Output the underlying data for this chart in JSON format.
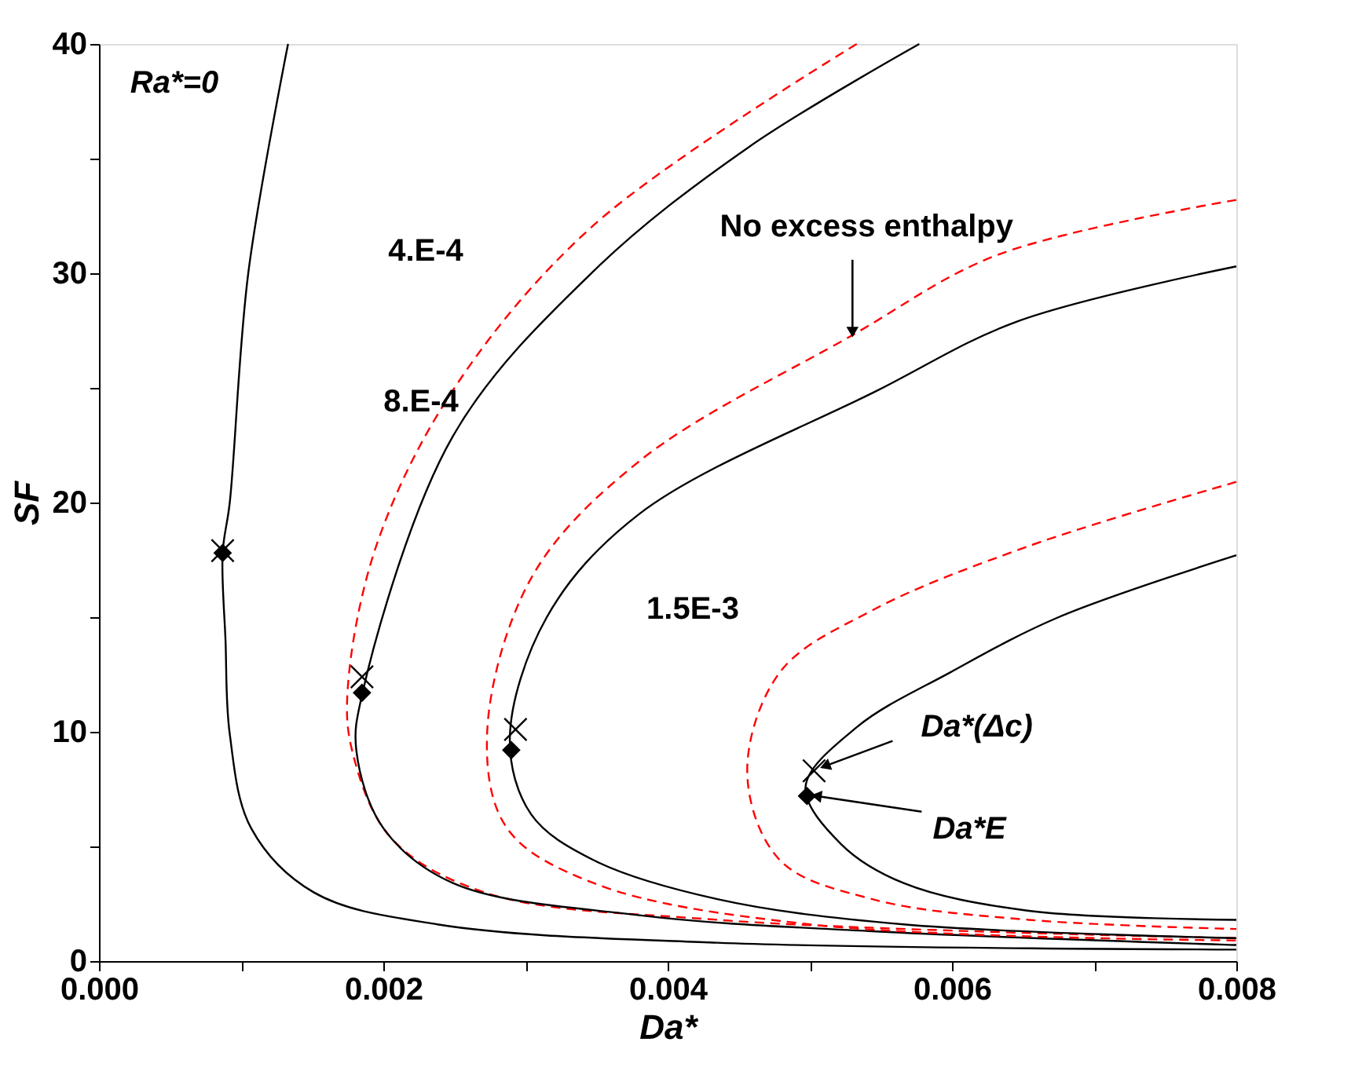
{
  "chart_data": {
    "type": "line",
    "xlabel": "Da*",
    "ylabel": "SF",
    "xlim": [
      0,
      0.008
    ],
    "ylim": [
      0,
      40
    ],
    "xticks": [
      {
        "value": 0,
        "label": "0.000"
      },
      {
        "value": 0.001,
        "label": null
      },
      {
        "value": 0.002,
        "label": "0.002"
      },
      {
        "value": 0.003,
        "label": null
      },
      {
        "value": 0.004,
        "label": "0.004"
      },
      {
        "value": 0.005,
        "label": null
      },
      {
        "value": 0.006,
        "label": "0.006"
      },
      {
        "value": 0.007,
        "label": null
      },
      {
        "value": 0.008,
        "label": "0.008"
      }
    ],
    "yticks": [
      0,
      {
        "value": 5,
        "label": null
      },
      10,
      {
        "value": 15,
        "label": null
      },
      20,
      {
        "value": 25,
        "label": null
      },
      30,
      {
        "value": 35,
        "label": null
      },
      40
    ],
    "grid": false,
    "series": [
      {
        "color": "#000000",
        "line_style": "solid",
        "x": [
          0.00133,
          0.00105,
          0.00092,
          0.00087,
          0.00089,
          0.00092,
          0.00107,
          0.00151,
          0.00238,
          0.00435,
          0.008
        ],
        "values": [
          40,
          30,
          20,
          17.8,
          14,
          9.9,
          5.8,
          3.0,
          1.6,
          0.8,
          0.5
        ]
      },
      {
        "color": "#ff0000",
        "line_style": "dashed",
        "x": [
          0.00533,
          0.00348,
          0.00249,
          0.00195,
          0.00175,
          0.00178,
          0.00205,
          0.00271,
          0.00435,
          0.008
        ],
        "values": [
          40,
          32.1,
          24.9,
          18.1,
          11.9,
          9.2,
          5.4,
          3.0,
          1.8,
          1.0
        ]
      },
      {
        "color": "#000000",
        "line_style": "solid",
        "x": [
          0.00577,
          0.00457,
          0.00348,
          0.00249,
          0.00185,
          0.00181,
          0.002,
          0.00249,
          0.0038,
          0.00544,
          0.008
        ],
        "values": [
          40,
          35.5,
          30.1,
          22.9,
          11.6,
          9.2,
          5.8,
          3.4,
          2.0,
          1.3,
          0.7
        ]
      },
      {
        "color": "#ff0000",
        "line_style": "dashed",
        "x": [
          0.008,
          0.00632,
          0.0053,
          0.0038,
          0.00304,
          0.00273,
          0.00287,
          0.00348,
          0.005,
          0.008
        ],
        "values": [
          33.2,
          30.8,
          27.3,
          21.8,
          16.7,
          9.9,
          5.8,
          3.4,
          1.6,
          0.9
        ]
      },
      {
        "color": "#000000",
        "line_style": "solid",
        "x": [
          0.008,
          0.00646,
          0.00548,
          0.0038,
          0.00315,
          0.00289,
          0.00304,
          0.00348,
          0.00435,
          0.00566,
          0.008
        ],
        "values": [
          30.3,
          27.9,
          24.9,
          19.5,
          15,
          9.7,
          6.4,
          4.4,
          2.7,
          1.6,
          1.0
        ]
      },
      {
        "color": "#ff0000",
        "line_style": "dashed",
        "x": [
          0.008,
          0.00654,
          0.00544,
          0.00479,
          0.00456,
          0.00479,
          0.00544,
          0.00654,
          0.008
        ],
        "values": [
          20.9,
          18.1,
          15.3,
          12.6,
          8.2,
          4.4,
          2.7,
          1.8,
          1.4
        ]
      },
      {
        "color": "#000000",
        "line_style": "solid",
        "x": [
          0.008,
          0.00675,
          0.00599,
          0.00533,
          0.00497,
          0.00522,
          0.00566,
          0.00653,
          0.008
        ],
        "values": [
          17.7,
          15,
          12.6,
          10.2,
          7.6,
          5.1,
          3.4,
          2.2,
          1.8
        ]
      },
      {
        "type": "scatter",
        "marker": "diamond",
        "color": "#000000",
        "x": [
          0.00087,
          0.00185,
          0.0029,
          0.00498
        ],
        "values": [
          17.8,
          11.7,
          9.2,
          7.2
        ]
      },
      {
        "type": "scatter",
        "marker": "cross",
        "color": "#000000",
        "x": [
          0.00087,
          0.00185,
          0.00293,
          0.00503
        ],
        "values": [
          17.9,
          12.4,
          10.1,
          8.3
        ]
      }
    ],
    "annotations": [
      "Ra*=0",
      "4.E-4",
      "8.E-4",
      "1.5E-3",
      {
        "text": "No excess enthalpy",
        "x": 0.0053,
        "y": 27.3
      },
      {
        "text": "Da*(Δc)",
        "x": 0.00503,
        "y": 8.3
      },
      {
        "text": "Da*E",
        "x": 0.00498,
        "y": 7.2
      }
    ]
  }
}
